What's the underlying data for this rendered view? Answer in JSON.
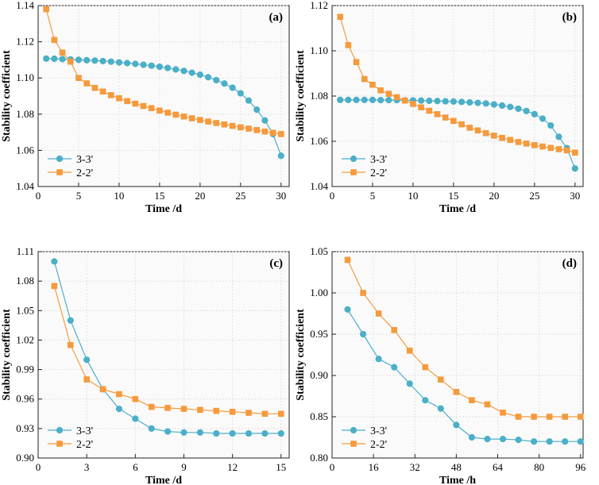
{
  "chart_data": [
    {
      "type": "line",
      "panel_label": "(a)",
      "xlabel": "Time /d",
      "ylabel": "Stability coefficient",
      "xlim": [
        0,
        31
      ],
      "ylim": [
        1.04,
        1.14
      ],
      "xticks": [
        0,
        5,
        10,
        15,
        20,
        25,
        30
      ],
      "yticks": [
        1.04,
        1.06,
        1.08,
        1.1,
        1.12,
        1.14
      ],
      "ytick_labels": [
        "1.04",
        "1.06",
        "1.08",
        "1.10",
        "1.12",
        "1.14"
      ],
      "legend": "bottom-left",
      "series": [
        {
          "name": "3-3'",
          "marker": "circle",
          "color": "#4bafc8",
          "x": [
            1,
            2,
            3,
            4,
            5,
            6,
            7,
            8,
            9,
            10,
            11,
            12,
            13,
            14,
            15,
            16,
            17,
            18,
            19,
            20,
            21,
            22,
            23,
            24,
            25,
            26,
            27,
            28,
            29,
            30
          ],
          "values": [
            1.1107,
            1.1106,
            1.1104,
            1.1102,
            1.11,
            1.1098,
            1.1096,
            1.1093,
            1.109,
            1.1086,
            1.1082,
            1.1078,
            1.1073,
            1.1068,
            1.1062,
            1.1055,
            1.1047,
            1.1039,
            1.1029,
            1.1018,
            1.1004,
            1.0988,
            1.0969,
            1.0946,
            1.0915,
            1.0875,
            1.0825,
            1.0765,
            1.069,
            1.057
          ]
        },
        {
          "name": "2-2'",
          "marker": "square",
          "color": "#f59a3d",
          "x": [
            1,
            2,
            3,
            4,
            5,
            6,
            7,
            8,
            9,
            10,
            11,
            12,
            13,
            14,
            15,
            16,
            17,
            18,
            19,
            20,
            21,
            22,
            23,
            24,
            25,
            26,
            27,
            28,
            29,
            30
          ],
          "values": [
            1.138,
            1.121,
            1.114,
            1.109,
            1.1,
            1.097,
            1.0945,
            1.0925,
            1.0905,
            1.0888,
            1.0872,
            1.0858,
            1.0845,
            1.0833,
            1.082,
            1.0808,
            1.0797,
            1.0787,
            1.0777,
            1.0768,
            1.0759,
            1.0751,
            1.0743,
            1.0735,
            1.0727,
            1.072,
            1.0712,
            1.0704,
            1.0697,
            1.069
          ]
        }
      ]
    },
    {
      "type": "line",
      "panel_label": "(b)",
      "xlabel": "Time /d",
      "ylabel": "Stability coefficient",
      "xlim": [
        0,
        31
      ],
      "ylim": [
        1.04,
        1.12
      ],
      "xticks": [
        0,
        5,
        10,
        15,
        20,
        25,
        30
      ],
      "yticks": [
        1.04,
        1.06,
        1.08,
        1.1,
        1.12
      ],
      "ytick_labels": [
        "1.04",
        "1.06",
        "1.08",
        "1.10",
        "1.12"
      ],
      "legend": "bottom-left",
      "series": [
        {
          "name": "3-3'",
          "marker": "circle",
          "color": "#4bafc8",
          "x": [
            1,
            2,
            3,
            4,
            5,
            6,
            7,
            8,
            9,
            10,
            11,
            12,
            13,
            14,
            15,
            16,
            17,
            18,
            19,
            20,
            21,
            22,
            23,
            24,
            25,
            26,
            27,
            28,
            29,
            30
          ],
          "values": [
            1.0783,
            1.0783,
            1.0783,
            1.0783,
            1.0783,
            1.0782,
            1.0782,
            1.0782,
            1.0781,
            1.0781,
            1.078,
            1.0779,
            1.0778,
            1.0777,
            1.0776,
            1.0774,
            1.0772,
            1.077,
            1.0767,
            1.0763,
            1.0758,
            1.0752,
            1.0744,
            1.0734,
            1.072,
            1.07,
            1.067,
            1.062,
            1.057,
            1.048
          ]
        },
        {
          "name": "2-2'",
          "marker": "square",
          "color": "#f59a3d",
          "x": [
            1,
            2,
            3,
            4,
            5,
            6,
            7,
            8,
            9,
            10,
            11,
            12,
            13,
            14,
            15,
            16,
            17,
            18,
            19,
            20,
            21,
            22,
            23,
            24,
            25,
            26,
            27,
            28,
            29,
            30
          ],
          "values": [
            1.115,
            1.1025,
            1.095,
            1.0875,
            1.085,
            1.0825,
            1.081,
            1.0795,
            1.078,
            1.0765,
            1.075,
            1.0735,
            1.072,
            1.0705,
            1.069,
            1.0675,
            1.066,
            1.0648,
            1.0636,
            1.0625,
            1.0615,
            1.0606,
            1.0597,
            1.059,
            1.0583,
            1.0577,
            1.0571,
            1.0565,
            1.056,
            1.055
          ]
        }
      ]
    },
    {
      "type": "line",
      "panel_label": "(c)",
      "xlabel": "Time /d",
      "ylabel": "Stability coefficient",
      "xlim": [
        0,
        15.5
      ],
      "ylim": [
        0.9,
        1.11
      ],
      "xticks": [
        0,
        3,
        6,
        9,
        12,
        15
      ],
      "yticks": [
        0.9,
        0.93,
        0.96,
        0.99,
        1.02,
        1.05,
        1.08,
        1.11
      ],
      "ytick_labels": [
        "0.90",
        "0.93",
        "0.96",
        "0.99",
        "1.02",
        "1.05",
        "1.08",
        "1.11"
      ],
      "legend": "bottom-left",
      "series": [
        {
          "name": "3-3'",
          "marker": "circle",
          "color": "#4bafc8",
          "x": [
            1,
            2,
            3,
            4,
            5,
            6,
            7,
            8,
            9,
            10,
            11,
            12,
            13,
            14,
            15
          ],
          "values": [
            1.1,
            1.04,
            1.0,
            0.97,
            0.95,
            0.94,
            0.93,
            0.927,
            0.926,
            0.926,
            0.925,
            0.925,
            0.925,
            0.925,
            0.925
          ]
        },
        {
          "name": "2-2'",
          "marker": "square",
          "color": "#f59a3d",
          "x": [
            1,
            2,
            3,
            4,
            5,
            6,
            7,
            8,
            9,
            10,
            11,
            12,
            13,
            14,
            15
          ],
          "values": [
            1.075,
            1.015,
            0.98,
            0.97,
            0.965,
            0.96,
            0.952,
            0.951,
            0.95,
            0.949,
            0.948,
            0.947,
            0.946,
            0.945,
            0.945
          ]
        }
      ]
    },
    {
      "type": "line",
      "panel_label": "(d)",
      "xlabel": "Time /h",
      "ylabel": "Stability coefficient",
      "xlim": [
        0,
        97
      ],
      "ylim": [
        0.8,
        1.05
      ],
      "xticks": [
        0,
        16,
        32,
        48,
        64,
        80,
        96
      ],
      "yticks": [
        0.8,
        0.85,
        0.9,
        0.95,
        1.0,
        1.05
      ],
      "ytick_labels": [
        "0.80",
        "0.85",
        "0.90",
        "0.95",
        "1.00",
        "1.05"
      ],
      "legend": "bottom-left",
      "series": [
        {
          "name": "3-3'",
          "marker": "circle",
          "color": "#4bafc8",
          "x": [
            6,
            12,
            18,
            24,
            30,
            36,
            42,
            48,
            54,
            60,
            66,
            72,
            78,
            84,
            90,
            96
          ],
          "values": [
            0.98,
            0.95,
            0.92,
            0.91,
            0.89,
            0.87,
            0.86,
            0.84,
            0.825,
            0.823,
            0.823,
            0.822,
            0.82,
            0.82,
            0.82,
            0.82
          ]
        },
        {
          "name": "2-2'",
          "marker": "square",
          "color": "#f59a3d",
          "x": [
            6,
            12,
            18,
            24,
            30,
            36,
            42,
            48,
            54,
            60,
            66,
            72,
            78,
            84,
            90,
            96
          ],
          "values": [
            1.04,
            1.0,
            0.975,
            0.955,
            0.93,
            0.91,
            0.895,
            0.88,
            0.87,
            0.865,
            0.855,
            0.85,
            0.85,
            0.85,
            0.85,
            0.85
          ]
        }
      ]
    }
  ]
}
